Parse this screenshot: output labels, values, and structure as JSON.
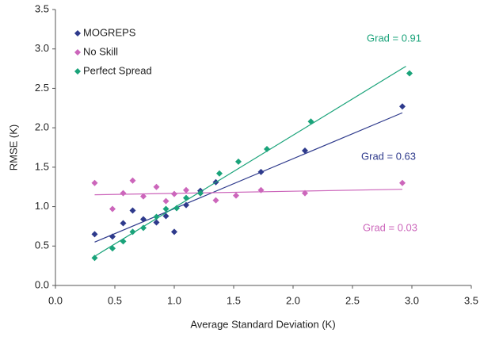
{
  "chart_data": {
    "type": "scatter",
    "x_label": "Average Standard Deviation (K)",
    "y_label": "RMSE (K)",
    "xlim": [
      0,
      3.5
    ],
    "ylim": [
      0,
      3.5
    ],
    "xticks": [
      {
        "value": 0,
        "label": "0.0"
      },
      0.5,
      {
        "value": 1,
        "label": "1.0"
      },
      1.5,
      {
        "value": 2,
        "label": "2.0"
      },
      2.5,
      {
        "value": 3,
        "label": "3.0"
      },
      3.5
    ],
    "yticks": [
      {
        "value": 0,
        "label": "0.0"
      },
      0.5,
      {
        "value": 1,
        "label": "1.0"
      },
      1.5,
      {
        "value": 2,
        "label": "2.0"
      },
      2.5,
      {
        "value": 3,
        "label": "3.0"
      },
      3.5
    ],
    "legend": "upper left",
    "series": [
      {
        "name": "MOGREPS",
        "color": "#2e3a8c",
        "x": [
          0.33,
          0.48,
          0.57,
          0.65,
          0.74,
          0.85,
          0.93,
          1.0,
          1.1,
          1.22,
          1.35,
          1.73,
          2.1,
          2.92
        ],
        "values": [
          0.65,
          0.62,
          0.79,
          0.95,
          0.84,
          0.8,
          0.88,
          0.68,
          1.02,
          1.2,
          1.31,
          1.44,
          1.71,
          2.27
        ],
        "trend_x": [
          0.33,
          2.92
        ],
        "trend_y": [
          0.55,
          2.19
        ],
        "annotation": "Grad = 0.63"
      },
      {
        "name": "No Skill",
        "color": "#cc66bb",
        "x": [
          0.33,
          0.48,
          0.57,
          0.65,
          0.74,
          0.85,
          0.93,
          1.0,
          1.1,
          1.22,
          1.35,
          1.52,
          1.73,
          2.1,
          2.92
        ],
        "values": [
          1.3,
          0.97,
          1.17,
          1.33,
          1.13,
          1.25,
          1.07,
          1.16,
          1.21,
          1.17,
          1.08,
          1.14,
          1.21,
          1.17,
          1.3
        ],
        "trend_x": [
          0.33,
          2.92
        ],
        "trend_y": [
          1.15,
          1.22
        ],
        "annotation": "Grad = 0.03"
      },
      {
        "name": "Perfect Spread",
        "color": "#1aa37a",
        "x": [
          0.33,
          0.48,
          0.57,
          0.65,
          0.74,
          0.85,
          0.93,
          1.02,
          1.1,
          1.22,
          1.38,
          1.54,
          1.78,
          2.15,
          2.98
        ],
        "values": [
          0.35,
          0.47,
          0.56,
          0.68,
          0.73,
          0.87,
          0.97,
          0.98,
          1.11,
          1.17,
          1.42,
          1.57,
          1.73,
          2.08,
          2.69
        ],
        "trend_x": [
          0.33,
          2.95
        ],
        "trend_y": [
          0.37,
          2.78
        ],
        "annotation": "Grad = 0.91"
      }
    ]
  }
}
